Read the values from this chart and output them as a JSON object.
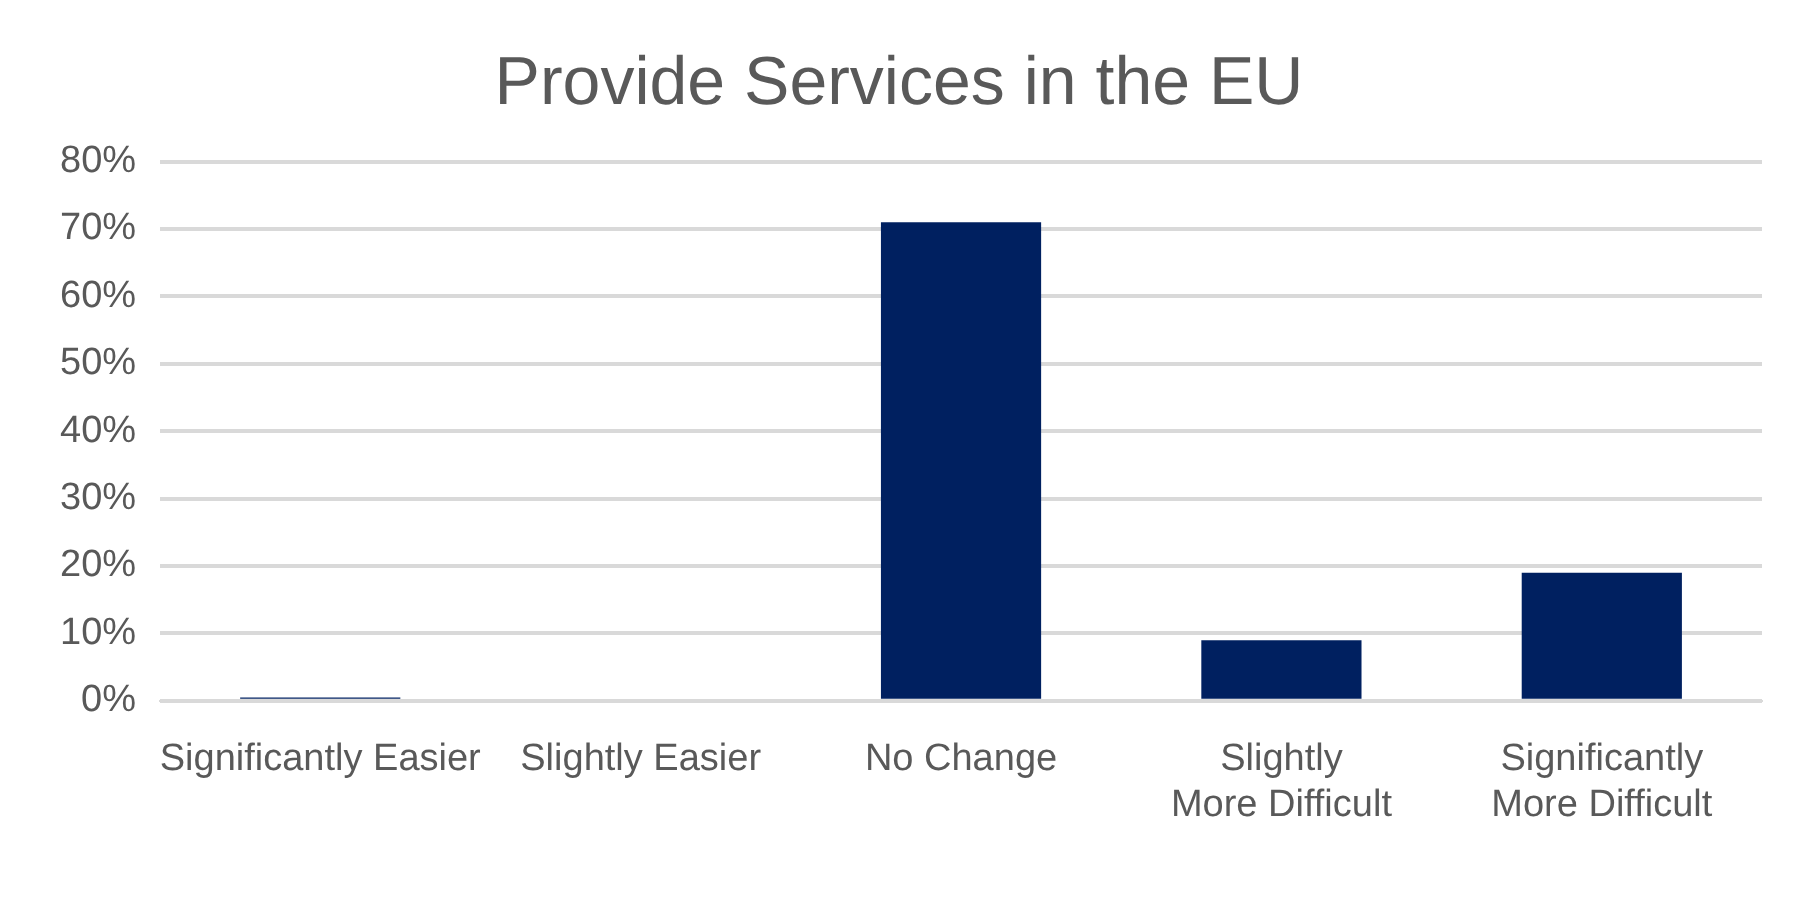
{
  "chart_data": {
    "type": "bar",
    "title": "Provide Services in the EU",
    "categories": [
      "Significantly Easier",
      "Slightly Easier",
      "No Change",
      "Slightly More Difficult",
      "Significantly More Difficult"
    ],
    "values": [
      0.5,
      0,
      71,
      9,
      19
    ],
    "color": "#002060",
    "ylim": [
      0,
      80
    ],
    "yticks": [
      {
        "value": 0,
        "label": "0%"
      },
      {
        "value": 10,
        "label": "10%"
      },
      {
        "value": 20,
        "label": "20%"
      },
      {
        "value": 30,
        "label": "30%"
      },
      {
        "value": 40,
        "label": "40%"
      },
      {
        "value": 50,
        "label": "50%"
      },
      {
        "value": 60,
        "label": "60%"
      },
      {
        "value": 70,
        "label": "70%"
      },
      {
        "value": 80,
        "label": "80%"
      }
    ],
    "grid": "y",
    "legend": false
  }
}
